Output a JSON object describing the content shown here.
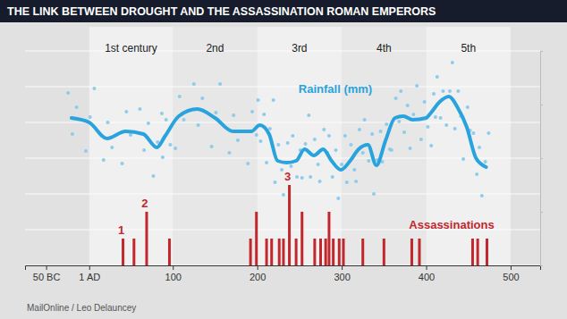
{
  "chart_data": {
    "type": "scatter",
    "title": "THE LINK BETWEEN DROUGHT AND THE ASSASSINATION ROMAN EMPERORS",
    "source": "MailOnline / Leo Delauncey",
    "xlim": [
      -75,
      535
    ],
    "xticks": [
      {
        "value": -50,
        "label": "50 BC"
      },
      {
        "value": 1,
        "label": "1 AD"
      },
      100,
      200,
      300,
      400,
      500
    ],
    "ylim": [
      0,
      120
    ],
    "yticks": [
      0,
      20,
      40,
      60,
      80,
      100,
      120
    ],
    "y2lim": [
      0,
      8
    ],
    "y2ticks": [
      0,
      2,
      4,
      6,
      8
    ],
    "grid": true,
    "tick_labels": "x",
    "bands": [
      {
        "label": "1st century",
        "from": 1,
        "to": 100
      },
      {
        "label": "2nd",
        "from": 100,
        "to": 200
      },
      {
        "label": "3rd",
        "from": 200,
        "to": 300
      },
      {
        "label": "4th",
        "from": 300,
        "to": 400
      },
      {
        "label": "5th",
        "from": 400,
        "to": 500
      }
    ],
    "annotations": [
      {
        "text": "1",
        "x": 41
      },
      {
        "text": "2",
        "x": 69
      },
      {
        "text": "3",
        "x": 238
      }
    ],
    "series": [
      {
        "type": "scatter",
        "color": "#8fcbeb",
        "marker": "circle",
        "x": [
          -24,
          -19,
          -14,
          -3,
          2,
          7,
          18,
          23,
          28,
          40,
          45,
          50,
          61,
          66,
          71,
          77,
          82,
          87,
          88,
          92,
          97,
          103,
          108,
          113,
          125,
          130,
          135,
          146,
          151,
          156,
          167,
          172,
          177,
          189,
          194,
          199,
          201,
          204,
          208,
          211,
          215,
          219,
          221,
          225,
          229,
          231,
          236,
          240,
          242,
          247,
          251,
          253,
          257,
          261,
          263,
          268,
          272,
          274,
          279,
          283,
          285,
          289,
          293,
          296,
          300,
          304,
          306,
          311,
          315,
          317,
          321,
          325,
          327,
          332,
          336,
          338,
          342,
          346,
          348,
          353,
          357,
          359,
          364,
          368,
          370,
          374,
          378,
          381,
          385,
          389,
          394,
          398,
          402,
          406,
          409,
          411,
          413,
          417,
          420,
          424,
          428,
          431,
          434,
          438,
          441,
          444,
          449,
          452,
          456,
          460,
          463,
          466,
          470,
          474
        ],
        "values": [
          96.5,
          73.5,
          88.5,
          64,
          83,
          99,
          59,
          80,
          66,
          57,
          86,
          73,
          87.5,
          64.5,
          79.5,
          50,
          69,
          85,
          60.5,
          81.5,
          67.5,
          65.5,
          94.5,
          81.5,
          101.5,
          78.5,
          93.5,
          66.5,
          85.5,
          101.5,
          63,
          84,
          70,
          57,
          86,
          73,
          92.5,
          69.5,
          84.5,
          57.5,
          76.5,
          92.5,
          46.5,
          67.5,
          53.5,
          39.5,
          68.5,
          55.5,
          72.5,
          49.5,
          64.5,
          49,
          68,
          84,
          49.5,
          70.5,
          56.5,
          47,
          76,
          63,
          72.5,
          49.5,
          64.5,
          37.5,
          56.5,
          72.5,
          46.5,
          67.5,
          53.5,
          47,
          76,
          63,
          81.5,
          58.5,
          73.5,
          40,
          59,
          75,
          58,
          79,
          65,
          64.5,
          93.5,
          80.5,
          97.5,
          74.5,
          89.5,
          65.5,
          84.5,
          100.5,
          70.5,
          91.5,
          77.5,
          67,
          96,
          83,
          105.5,
          82.5,
          97.5,
          78.5,
          97.5,
          113.5,
          76.5,
          97.5,
          83.5,
          59.5,
          88.5,
          75.5,
          74,
          51,
          66,
          39,
          58,
          74
        ]
      },
      {
        "name": "Rainfall (mm)",
        "type": "line",
        "color": "#29a3dd",
        "line_style": "solid",
        "x": [
          -20,
          1,
          22,
          44,
          65,
          81,
          91,
          107,
          129,
          150,
          171,
          193,
          203,
          214,
          224,
          235,
          246,
          256,
          267,
          278,
          288,
          299,
          310,
          320,
          331,
          341,
          352,
          363,
          373,
          384,
          400,
          405,
          416,
          427,
          437,
          448,
          459,
          471
        ],
        "values": [
          82.5,
          80,
          71,
          75,
          73.5,
          66,
          72.5,
          83.5,
          87.5,
          82.5,
          75,
          75,
          78.5,
          73.5,
          58.5,
          57.5,
          58.5,
          65,
          61.5,
          65,
          58.5,
          53.5,
          58.5,
          65,
          67.5,
          56,
          70,
          82.5,
          83.5,
          81.5,
          82.5,
          85,
          91.5,
          94.5,
          88.5,
          77.5,
          60,
          55
        ]
      },
      {
        "name": "Assassinations",
        "type": "bar",
        "color": "#c1272d",
        "axis": "y2",
        "x": [
          41,
          54,
          69,
          96,
          192,
          199,
          211,
          217,
          226,
          231,
          238,
          246,
          253,
          268,
          275,
          281,
          285,
          290,
          297,
          302,
          325,
          350,
          383,
          392,
          455,
          461,
          472
        ],
        "values": [
          1,
          1,
          2,
          1,
          1,
          2,
          1,
          1,
          1,
          1,
          3,
          1,
          2,
          1,
          1,
          1,
          2,
          1,
          1,
          1,
          1,
          1,
          1,
          1,
          1,
          1,
          1
        ]
      }
    ]
  }
}
